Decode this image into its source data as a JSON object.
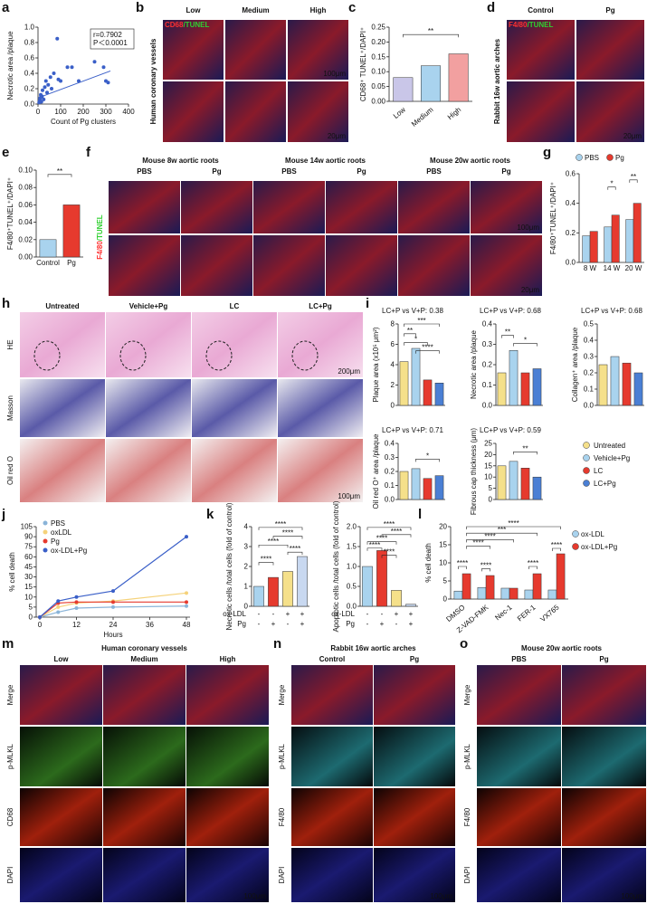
{
  "panel_labels": [
    "a",
    "b",
    "c",
    "d",
    "e",
    "f",
    "g",
    "h",
    "i",
    "j",
    "k",
    "l",
    "m",
    "n",
    "o"
  ],
  "images": {
    "b": {
      "side": "Human coronary vessels",
      "stain": [
        "CD68",
        "/TUNEL"
      ],
      "columns": [
        "Low",
        "Medium",
        "High"
      ],
      "scale": [
        "100μm",
        "20μm"
      ]
    },
    "d": {
      "side": "Rabbit 16w aortic arches",
      "stain": [
        "F4/80",
        "/TUNEL"
      ],
      "columns": [
        "Control",
        "Pg"
      ],
      "scale": [
        "20μm"
      ]
    },
    "f": {
      "groups": [
        "Mouse 8w aortic roots",
        "Mouse 14w aortic roots",
        "Mouse 20w aortic roots"
      ],
      "columns": [
        "PBS",
        "Pg",
        "PBS",
        "Pg",
        "PBS",
        "Pg"
      ],
      "stain": [
        "F4/80",
        "/TUNEL"
      ],
      "scale": [
        "100μm",
        "20μm"
      ]
    },
    "h": {
      "columns": [
        "Untreated",
        "Vehicle+Pg",
        "LC",
        "LC+Pg"
      ],
      "rows": [
        "HE",
        "Masson",
        "Oil red O"
      ],
      "scale": [
        "200μm",
        "100μm"
      ]
    },
    "m": {
      "title": "Human coronary vessels",
      "columns": [
        "Low",
        "Medium",
        "High"
      ],
      "rows": [
        "Merge",
        "p-MLKL",
        "CD68",
        "DAPI"
      ],
      "scale": [
        "100μm"
      ]
    },
    "n": {
      "title": "Rabbit 16w aortic arches",
      "columns": [
        "Control",
        "Pg"
      ],
      "rows": [
        "Merge",
        "p-MLKL",
        "F4/80",
        "DAPI"
      ],
      "scale": [
        "100μm"
      ]
    },
    "o": {
      "title": "Mouse 20w aortic roots",
      "columns": [
        "PBS",
        "Pg"
      ],
      "rows": [
        "Merge",
        "p-MLKL",
        "F4/80",
        "DAPI"
      ],
      "scale": [
        "100μm"
      ]
    }
  },
  "i_legend": {
    "names": [
      "Untreated",
      "Vehicle+Pg",
      "LC",
      "LC+Pg"
    ]
  },
  "chart_data": [
    {
      "type": "scatter",
      "x_label": "Count of Pg clusters",
      "y_label": "Necrotic area /plaque",
      "annotations": [
        "r=0.7902",
        "P＜0.0001"
      ],
      "x": [
        5,
        8,
        10,
        12,
        15,
        18,
        20,
        25,
        30,
        35,
        40,
        45,
        55,
        60,
        70,
        85,
        90,
        100,
        130,
        150,
        180,
        250,
        290,
        300,
        310
      ],
      "y": [
        0.02,
        0.05,
        0.08,
        0.12,
        0.03,
        0.1,
        0.18,
        0.06,
        0.22,
        0.3,
        0.15,
        0.25,
        0.35,
        0.2,
        0.4,
        0.85,
        0.32,
        0.3,
        0.48,
        0.48,
        0.3,
        0.55,
        0.48,
        0.3,
        0.28
      ],
      "trend": {
        "x": [
          0,
          320
        ],
        "y": [
          0.08,
          0.43
        ]
      },
      "color": "#3a5fc8",
      "xlim": [
        0,
        400
      ],
      "xticks": [
        0,
        100,
        200,
        300,
        400
      ],
      "ylim": [
        0,
        1
      ],
      "yticks": [
        {
          "value": 0,
          "label": "0.0"
        },
        0.2,
        0.4,
        0.6,
        0.8,
        {
          "value": 1,
          "label": "1.0"
        }
      ]
    },
    {
      "type": "bar",
      "y_label": "CD68⁺ TUNEL⁺/DAPI⁺",
      "categories": [
        "Low",
        "Medium",
        "High"
      ],
      "values": [
        0.08,
        0.12,
        0.16
      ],
      "colors": [
        "#c9c6e8",
        "#a9d3ee",
        "#f2a0a0"
      ],
      "ylim": [
        0,
        0.25
      ],
      "yticks": [
        {
          "value": 0,
          "label": "0.00"
        },
        0.05,
        {
          "value": 0.1,
          "label": "0.10"
        },
        0.15,
        {
          "value": 0.2,
          "label": "0.20"
        },
        0.25
      ],
      "significance": [
        "**"
      ]
    },
    {
      "type": "bar",
      "y_label": "F4/80⁺TUNEL⁺/DAPI⁺",
      "categories": [
        "Control",
        "Pg"
      ],
      "values": [
        0.02,
        0.06
      ],
      "colors": [
        "#a9d3ee",
        "#e63a2e"
      ],
      "ylim": [
        0,
        0.1
      ],
      "yticks": [
        {
          "value": 0,
          "label": "0.00"
        },
        0.02,
        0.04,
        0.06,
        0.08,
        {
          "value": 0.1,
          "label": "0.10"
        }
      ],
      "significance": [
        "**"
      ]
    },
    {
      "type": "grouped_bar",
      "y_label": "F4/80⁺TUNEL⁺/DAPI⁺",
      "categories": [
        "8 W",
        "14 W",
        "20 W"
      ],
      "series": [
        {
          "name": "PBS",
          "color": "#a9d3ee",
          "values": [
            0.18,
            0.24,
            0.29
          ]
        },
        {
          "name": "Pg",
          "color": "#e63a2e",
          "values": [
            0.21,
            0.32,
            0.4
          ]
        }
      ],
      "ylim": [
        0,
        0.6
      ],
      "yticks": [
        {
          "value": 0,
          "label": "0.0"
        },
        0.2,
        0.4,
        0.6
      ],
      "significance": [
        "*",
        "**"
      ]
    },
    {
      "type": "bar",
      "title": "LC+P vs V+P: 0.38",
      "y_label": "Plaque area (x10⁵ μm²)",
      "categories": [
        null,
        null,
        null,
        null
      ],
      "values": [
        4.3,
        5.6,
        2.5,
        2.2
      ],
      "colors": [
        "#f5e08a",
        "#a9d3ee",
        "#e63a2e",
        "#4a7fd4"
      ],
      "ylim": [
        0,
        8
      ],
      "yticks": [
        0,
        2,
        4,
        6,
        8
      ],
      "significance": [
        "***",
        "**",
        "*",
        "****"
      ]
    },
    {
      "type": "bar",
      "title": "LC+P vs V+P: 0.68",
      "y_label": "Necrotic area /plaque",
      "categories": [
        null,
        null,
        null,
        null
      ],
      "values": [
        0.16,
        0.27,
        0.16,
        0.18
      ],
      "colors": [
        "#f5e08a",
        "#a9d3ee",
        "#e63a2e",
        "#4a7fd4"
      ],
      "ylim": [
        0,
        0.4
      ],
      "yticks": [
        {
          "value": 0,
          "label": "0.0"
        },
        0.1,
        0.2,
        0.3,
        0.4
      ],
      "significance": [
        "**",
        "*"
      ]
    },
    {
      "type": "bar",
      "title": "LC+P vs V+P: 0.68",
      "y_label": "Collagen⁺ area /plaque",
      "categories": [
        null,
        null,
        null,
        null
      ],
      "values": [
        0.25,
        0.3,
        0.26,
        0.2
      ],
      "colors": [
        "#f5e08a",
        "#a9d3ee",
        "#e63a2e",
        "#4a7fd4"
      ],
      "ylim": [
        0,
        0.5
      ],
      "yticks": [
        {
          "value": 0,
          "label": "0.0"
        },
        0.1,
        0.2,
        0.3,
        0.4,
        0.5
      ],
      "significance": []
    },
    {
      "type": "bar",
      "title": "LC+P vs V+P: 0.71",
      "y_label": "Oil red O⁺ area /plaque",
      "categories": [
        null,
        null,
        null,
        null
      ],
      "values": [
        0.2,
        0.22,
        0.15,
        0.17
      ],
      "colors": [
        "#f5e08a",
        "#a9d3ee",
        "#e63a2e",
        "#4a7fd4"
      ],
      "ylim": [
        0,
        0.4
      ],
      "yticks": [
        {
          "value": 0,
          "label": "0.0"
        },
        0.1,
        0.2,
        0.3,
        0.4
      ],
      "significance": [
        "*"
      ]
    },
    {
      "type": "bar",
      "title": "LC+P vs V+P: 0.59",
      "y_label": "Fibrous cap thickness (μm)",
      "categories": [
        null,
        null,
        null,
        null
      ],
      "values": [
        15,
        17,
        14,
        10
      ],
      "colors": [
        "#f5e08a",
        "#a9d3ee",
        "#e63a2e",
        "#4a7fd4"
      ],
      "ylim": [
        0,
        25
      ],
      "yticks": [
        0,
        5,
        10,
        15,
        20,
        25
      ],
      "significance": [
        "**"
      ]
    },
    {
      "type": "line",
      "x_label": "Hours",
      "y_label": "% cell death",
      "x": [
        0,
        6,
        12,
        24,
        48
      ],
      "xlim": [
        0,
        48
      ],
      "xticks": [
        0,
        12,
        24,
        36,
        48
      ],
      "series": [
        {
          "name": "PBS",
          "color": "#8ab4d8",
          "values": [
            0,
            2.5,
            4.5,
            5,
            5.5
          ]
        },
        {
          "name": "oxLDL",
          "color": "#f5d27a",
          "values": [
            0,
            5,
            7,
            8,
            12
          ]
        },
        {
          "name": "Pg",
          "color": "#e63a2e",
          "values": [
            0,
            7,
            7.5,
            7.5,
            7.5
          ]
        },
        {
          "name": "ox-LDL+Pg",
          "color": "#3a5fc8",
          "values": [
            0,
            8,
            10,
            13,
            90
          ]
        }
      ],
      "ylim": [
        0,
        105
      ],
      "yticks": [
        0,
        5,
        10,
        15,
        30,
        45,
        60,
        75,
        90,
        105
      ]
    },
    {
      "type": "bar",
      "y_label": "Necrotic cells /total cells (fold of control)",
      "categories": [
        null,
        null,
        null,
        null
      ],
      "values": [
        1,
        1.45,
        1.75,
        2.5
      ],
      "colors": [
        "#a9d3ee",
        "#e63a2e",
        "#f5e08a",
        "#c8d8f0"
      ],
      "ylim": [
        0,
        4
      ],
      "yticks": [
        0,
        1,
        2,
        3,
        4
      ],
      "significance": [
        "****",
        "****",
        "****",
        "****",
        "****"
      ],
      "x_table": [
        {
          "name": "ox-LDL",
          "values": [
            "-",
            "-",
            "+",
            "+"
          ]
        },
        {
          "name": "Pg",
          "values": [
            "-",
            "+",
            "-",
            "+"
          ]
        }
      ]
    },
    {
      "type": "bar",
      "y_label": "Apoptotic cells /total cells (fold of control)",
      "categories": [
        null,
        null,
        null,
        null
      ],
      "values": [
        1,
        1.4,
        0.4,
        0.05
      ],
      "colors": [
        "#a9d3ee",
        "#e63a2e",
        "#f5e08a",
        "#c8d8f0"
      ],
      "ylim": [
        0,
        2
      ],
      "yticks": [
        {
          "value": 0,
          "label": "0.0"
        },
        0.5,
        {
          "value": 1,
          "label": "1.0"
        },
        1.5,
        {
          "value": 2,
          "label": "2.0"
        }
      ],
      "significance": [
        "****",
        "****",
        "****",
        "****",
        "****"
      ],
      "x_table": [
        {
          "name": "ox-LDL",
          "values": [
            "-",
            "-",
            "+",
            "+"
          ]
        },
        {
          "name": "Pg",
          "values": [
            "-",
            "+",
            "-",
            "+"
          ]
        }
      ]
    },
    {
      "type": "grouped_bar",
      "y_label": "% cell death",
      "categories": [
        "DMSO",
        "Z-VAD-FMK",
        "Nec-1",
        "FER-1",
        "VX765"
      ],
      "series": [
        {
          "name": "ox-LDL",
          "color": "#a9d3ee",
          "values": [
            2.2,
            3.2,
            3,
            2.5,
            2.5
          ]
        },
        {
          "name": "ox-LDL+Pg",
          "color": "#e63a2e",
          "values": [
            7,
            6.5,
            3,
            7,
            12.5
          ]
        }
      ],
      "ylim": [
        0,
        20
      ],
      "yticks": [
        0,
        5,
        10,
        15,
        20
      ],
      "significance": [
        "****",
        "***",
        "****",
        "****",
        "****",
        "****",
        "****",
        "****"
      ]
    }
  ]
}
